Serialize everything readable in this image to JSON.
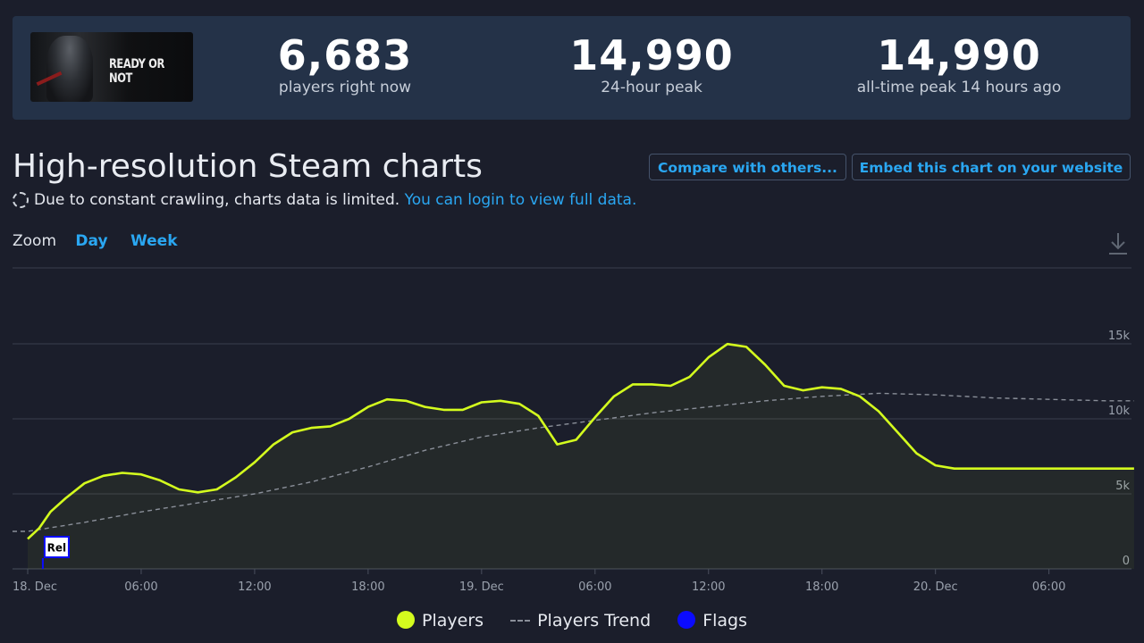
{
  "header": {
    "game_logo": "READY OR NOT",
    "stats": [
      {
        "value": "6,683",
        "label": "players right now"
      },
      {
        "value": "14,990",
        "label": "24-hour peak"
      },
      {
        "value": "14,990",
        "label": "all-time peak 14 hours ago"
      }
    ]
  },
  "page": {
    "title": "High-resolution Steam charts",
    "compare_button": "Compare with others...",
    "embed_button": "Embed this chart on your website",
    "notice_text": "Due to constant crawling, charts data is limited.",
    "notice_link": "You can login to view full data."
  },
  "zoom": {
    "label": "Zoom",
    "options": [
      "Day",
      "Week"
    ]
  },
  "colors": {
    "players": "#d4fc1e",
    "trend": "#8a8f99",
    "flags": "#0b0bff",
    "accent": "#2aa7f2"
  },
  "chart_data": {
    "type": "line",
    "x_tick_labels": [
      "18. Dec",
      "06:00",
      "12:00",
      "18:00",
      "19. Dec",
      "06:00",
      "12:00",
      "18:00",
      "20. Dec",
      "06:00"
    ],
    "y_tick_labels": [
      "0",
      "5k",
      "10k",
      "15k"
    ],
    "ylim": [
      0,
      15000
    ],
    "grid": true,
    "legend_position": "bottom",
    "x_unit_note": "hours since 18 Dec 00:00",
    "series": [
      {
        "name": "Players",
        "x": [
          0,
          0.6,
          1.2,
          2,
          3,
          4,
          5,
          6,
          7,
          8,
          9,
          10,
          11,
          12,
          13,
          14,
          15,
          16,
          17,
          18,
          19,
          20,
          21,
          22,
          23,
          24,
          25,
          26,
          27,
          28,
          29,
          30,
          31,
          32,
          33,
          34,
          35,
          36,
          37,
          38,
          39,
          40,
          41,
          42,
          43,
          44,
          45,
          46,
          47,
          48,
          49,
          50,
          51,
          52,
          53,
          54,
          55,
          56,
          57,
          58,
          58.5
        ],
        "values": [
          2000,
          2700,
          3800,
          4700,
          5700,
          6200,
          6400,
          6300,
          5900,
          5300,
          5100,
          5300,
          6100,
          7100,
          8300,
          9100,
          9400,
          9500,
          10000,
          10800,
          11300,
          11200,
          10800,
          10600,
          10600,
          11100,
          11200,
          11000,
          10200,
          8300,
          8600,
          10100,
          11500,
          12300,
          12300,
          12200,
          12800,
          14100,
          14990,
          14800,
          13600,
          12200,
          11900,
          12100,
          12000,
          11500,
          10500,
          9100,
          7700,
          6900,
          6683,
          6683,
          6683,
          6683,
          6683,
          6683,
          6683,
          6683,
          6683,
          6683,
          6683
        ]
      },
      {
        "name": "Players Trend",
        "x": [
          0,
          3,
          6,
          9,
          12,
          15,
          18,
          21,
          24,
          27,
          30,
          33,
          36,
          39,
          42,
          45,
          48,
          51,
          54,
          57,
          58.5
        ],
        "values": [
          2500,
          3100,
          3800,
          4400,
          5000,
          5800,
          6800,
          7900,
          8800,
          9400,
          9900,
          10400,
          10800,
          11200,
          11500,
          11700,
          11600,
          11400,
          11300,
          11200,
          11200
        ]
      }
    ],
    "flags": [
      {
        "x": 0.8,
        "label": "Rel"
      }
    ]
  }
}
